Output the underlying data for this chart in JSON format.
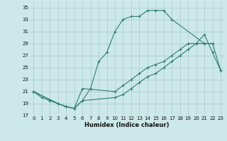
{
  "xlabel": "Humidex (Indice chaleur)",
  "xlim": [
    -0.5,
    23.5
  ],
  "ylim": [
    17,
    36
  ],
  "yticks": [
    17,
    19,
    21,
    23,
    25,
    27,
    29,
    31,
    33,
    35
  ],
  "xticks": [
    0,
    1,
    2,
    3,
    4,
    5,
    6,
    7,
    8,
    9,
    10,
    11,
    12,
    13,
    14,
    15,
    16,
    17,
    18,
    19,
    20,
    21,
    22,
    23
  ],
  "bg_color": "#cce8e8",
  "line_color": "#2e7d6e",
  "grid_color": "#b0d0d0",
  "line1_x": [
    0,
    1,
    2,
    3,
    4,
    5,
    6,
    7,
    8,
    9,
    10,
    11,
    12,
    13,
    14,
    15,
    16,
    17,
    21,
    22
  ],
  "line1_y": [
    21,
    20,
    19.5,
    19,
    18.5,
    18.2,
    19.5,
    21.5,
    26,
    27.5,
    31,
    33,
    33.5,
    33.5,
    34.5,
    34.5,
    34.5,
    33,
    29,
    29
  ],
  "line2_x": [
    0,
    3,
    4,
    5,
    6,
    10,
    11,
    12,
    13,
    14,
    15,
    16,
    17,
    18,
    19,
    20,
    21,
    22,
    23
  ],
  "line2_y": [
    21,
    19,
    18.5,
    18.2,
    21.5,
    21,
    22,
    23,
    24,
    25,
    25.5,
    26,
    27,
    28,
    29,
    29,
    30.5,
    27.5,
    24.5
  ],
  "line3_x": [
    0,
    3,
    4,
    5,
    6,
    10,
    11,
    12,
    13,
    14,
    15,
    16,
    17,
    18,
    19,
    20,
    21,
    22,
    23
  ],
  "line3_y": [
    21,
    19,
    18.5,
    18.2,
    19.5,
    20,
    20.5,
    21.5,
    22.5,
    23.5,
    24,
    25,
    26,
    27,
    28,
    29,
    29,
    29,
    24.5
  ]
}
